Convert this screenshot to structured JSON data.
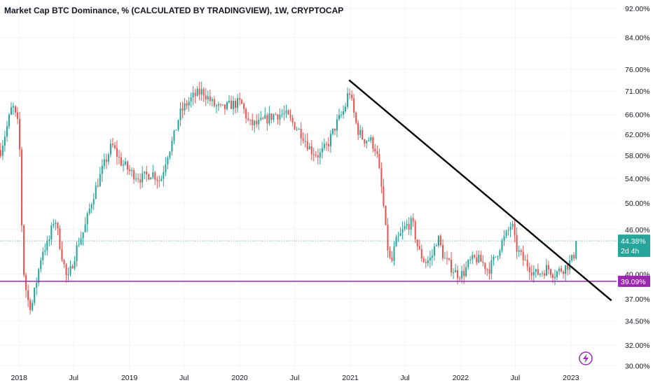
{
  "title": "Market Cap BTC Dominance, % (CALCULATED BY TRADINGVIEW), 1W, CRYPTOCAP",
  "colors": {
    "up": "#26a69a",
    "down": "#ef5350",
    "support": "#9c27b0",
    "trendline": "#000000",
    "last_badge": "#26a69a",
    "grid": "#f0f3fa",
    "alert_icon": "#9c27b0"
  },
  "icons": {
    "alert": "lightning-alert-icon"
  },
  "chart_data": {
    "type": "candlestick",
    "title": "Market Cap BTC Dominance, % (CALCULATED BY TRADINGVIEW), 1W, CRYPTOCAP",
    "interval": "1W",
    "y_scale": "log",
    "ylim": [
      29.5,
      94.5
    ],
    "xlim": [
      "2017-10-30",
      "2023-06-01"
    ],
    "y_ticks": [
      {
        "value": 92,
        "label": "92.00%"
      },
      {
        "value": 84,
        "label": "84.00%"
      },
      {
        "value": 76,
        "label": "76.00%"
      },
      {
        "value": 71,
        "label": "71.00%"
      },
      {
        "value": 66,
        "label": "66.00%"
      },
      {
        "value": 62,
        "label": "62.00%"
      },
      {
        "value": 58,
        "label": "58.00%"
      },
      {
        "value": 54,
        "label": "54.00%"
      },
      {
        "value": 50,
        "label": "50.00%"
      },
      {
        "value": 46,
        "label": "46.00%"
      },
      {
        "value": 40,
        "label": "40.00%"
      },
      {
        "value": 37,
        "label": "37.00%"
      },
      {
        "value": 34.5,
        "label": "34.50%"
      },
      {
        "value": 32,
        "label": "32.00%"
      },
      {
        "value": 30,
        "label": "30.00%"
      }
    ],
    "x_ticks": [
      {
        "date": "2018-01-01",
        "label": "2018"
      },
      {
        "date": "2018-07-01",
        "label": "Jul"
      },
      {
        "date": "2019-01-01",
        "label": "2019"
      },
      {
        "date": "2019-07-01",
        "label": "Jul"
      },
      {
        "date": "2020-01-01",
        "label": "2020"
      },
      {
        "date": "2020-07-01",
        "label": "Jul"
      },
      {
        "date": "2021-01-01",
        "label": "2021"
      },
      {
        "date": "2021-07-01",
        "label": "Jul"
      },
      {
        "date": "2022-01-01",
        "label": "2022"
      },
      {
        "date": "2022-07-01",
        "label": "Jul"
      },
      {
        "date": "2023-01-01",
        "label": "2023"
      }
    ],
    "last_price": {
      "value": 44.38,
      "label": "44.38%",
      "countdown": "2d 4h"
    },
    "support_line": {
      "value": 39.09,
      "label": "39.09%"
    },
    "trendline": {
      "start": {
        "date": "2020-12-28",
        "value": 73.5
      },
      "end": {
        "date": "2023-05-15",
        "value": 36.8
      }
    },
    "trend_path": [
      [
        "2017-11-01",
        59
      ],
      [
        "2017-11-20",
        63
      ],
      [
        "2017-12-10",
        68
      ],
      [
        "2018-01-01",
        63
      ],
      [
        "2018-01-14",
        41
      ],
      [
        "2018-01-28",
        37
      ],
      [
        "2018-02-11",
        36
      ],
      [
        "2018-02-25",
        38.5
      ],
      [
        "2018-03-18",
        43
      ],
      [
        "2018-04-08",
        44
      ],
      [
        "2018-04-29",
        48
      ],
      [
        "2018-05-20",
        43
      ],
      [
        "2018-06-10",
        39
      ],
      [
        "2018-06-24",
        41
      ],
      [
        "2018-07-15",
        44
      ],
      [
        "2018-08-05",
        46
      ],
      [
        "2018-09-02",
        51
      ],
      [
        "2018-10-07",
        56
      ],
      [
        "2018-11-04",
        60
      ],
      [
        "2018-12-02",
        57
      ],
      [
        "2019-01-06",
        55
      ],
      [
        "2019-02-10",
        54
      ],
      [
        "2019-03-17",
        55
      ],
      [
        "2019-04-14",
        53.5
      ],
      [
        "2019-05-05",
        58
      ],
      [
        "2019-05-26",
        61
      ],
      [
        "2019-06-16",
        66
      ],
      [
        "2019-07-07",
        68
      ],
      [
        "2019-08-04",
        70
      ],
      [
        "2019-09-01",
        71
      ],
      [
        "2019-10-06",
        68
      ],
      [
        "2019-11-03",
        67
      ],
      [
        "2019-12-01",
        68
      ],
      [
        "2020-01-05",
        68.5
      ],
      [
        "2020-02-02",
        64
      ],
      [
        "2020-03-01",
        64
      ],
      [
        "2020-03-29",
        65
      ],
      [
        "2020-04-26",
        66
      ],
      [
        "2020-05-31",
        66
      ],
      [
        "2020-06-28",
        64
      ],
      [
        "2020-07-26",
        62
      ],
      [
        "2020-08-23",
        59
      ],
      [
        "2020-09-20",
        58
      ],
      [
        "2020-10-18",
        60
      ],
      [
        "2020-11-15",
        64
      ],
      [
        "2020-12-13",
        67
      ],
      [
        "2020-12-28",
        71.5
      ],
      [
        "2021-01-10",
        67
      ],
      [
        "2021-01-24",
        63
      ],
      [
        "2021-02-14",
        61
      ],
      [
        "2021-03-07",
        61
      ],
      [
        "2021-03-28",
        59
      ],
      [
        "2021-04-18",
        51
      ],
      [
        "2021-05-02",
        44
      ],
      [
        "2021-05-16",
        41
      ],
      [
        "2021-05-30",
        44
      ],
      [
        "2021-06-13",
        45
      ],
      [
        "2021-07-04",
        46.5
      ],
      [
        "2021-07-25",
        47
      ],
      [
        "2021-08-15",
        43
      ],
      [
        "2021-09-05",
        41.5
      ],
      [
        "2021-09-26",
        42
      ],
      [
        "2021-10-17",
        45
      ],
      [
        "2021-11-07",
        42
      ],
      [
        "2021-11-28",
        41
      ],
      [
        "2021-12-19",
        40
      ],
      [
        "2022-01-09",
        40
      ],
      [
        "2022-01-30",
        41.5
      ],
      [
        "2022-02-20",
        42
      ],
      [
        "2022-03-13",
        41.5
      ],
      [
        "2022-04-03",
        40.5
      ],
      [
        "2022-04-24",
        42
      ],
      [
        "2022-05-15",
        44
      ],
      [
        "2022-06-05",
        45.5
      ],
      [
        "2022-06-19",
        47
      ],
      [
        "2022-07-03",
        43.5
      ],
      [
        "2022-07-24",
        42
      ],
      [
        "2022-08-14",
        41
      ],
      [
        "2022-09-04",
        40
      ],
      [
        "2022-09-25",
        40.2
      ],
      [
        "2022-10-16",
        40.8
      ],
      [
        "2022-11-06",
        40
      ],
      [
        "2022-11-27",
        40.5
      ],
      [
        "2022-12-18",
        41
      ],
      [
        "2023-01-08",
        42
      ],
      [
        "2023-01-22",
        44.38
      ]
    ]
  }
}
